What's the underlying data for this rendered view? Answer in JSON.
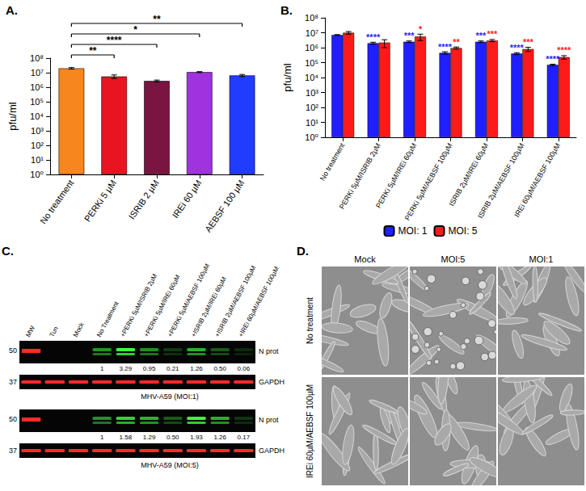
{
  "chart_data": [
    {
      "panel": "A.",
      "type": "bar",
      "log": "y",
      "grid": false,
      "categories": [
        "No treatment",
        "PERKi 5 µM",
        "ISRIB 2 µM",
        "IREi 60 µM",
        "AEBSF 100 µM"
      ],
      "values": [
        20000000,
        5500000,
        2700000,
        11000000,
        6500000
      ],
      "errors": [
        2500000,
        1500000,
        400000,
        800000,
        1000000
      ],
      "colors": [
        "#f7861e",
        "#e8141f",
        "#7a1440",
        "#a033e0",
        "#1f3cff"
      ],
      "y_label": "pfu/ml",
      "ylim": [
        1,
        100000000
      ],
      "yticks": [
        {
          "value": 1,
          "label": "10⁰"
        },
        {
          "value": 10,
          "label": "10¹"
        },
        {
          "value": 100,
          "label": "10²"
        },
        {
          "value": 1000,
          "label": "10³"
        },
        {
          "value": 10000,
          "label": "10⁴"
        },
        {
          "value": 100000,
          "label": "10⁵"
        },
        {
          "value": 1000000,
          "label": "10⁶"
        },
        {
          "value": 10000000,
          "label": "10⁷"
        },
        {
          "value": 100000000,
          "label": "10⁸"
        }
      ],
      "comparisons": [
        {
          "from": "No treatment",
          "to": "PERKi 5 µM",
          "label": "**"
        },
        {
          "from": "No treatment",
          "to": "ISRIB 2 µM",
          "label": "****"
        },
        {
          "from": "No treatment",
          "to": "IREi 60 µM",
          "label": "*"
        },
        {
          "from": "No treatment",
          "to": "AEBSF 100 µM",
          "label": "**"
        }
      ]
    },
    {
      "panel": "B.",
      "type": "bar",
      "log": "y",
      "grid": false,
      "legend": "bottom",
      "categories": [
        "No treatment",
        "PERKi 5µM/ISRIB 2µM",
        "PERKi 5µM/IREi 60µM",
        "PERKi 5µM/AEBSF 100µM",
        "ISRIB 2µM/IREi 60µM",
        "ISRIB 2µM/AEBSF 100µM",
        "IREi 60µM/AEBSF 100µM"
      ],
      "series": [
        {
          "name": "MOI: 1",
          "color": "#1f1fff",
          "values": [
            7000000,
            2000000,
            2500000,
            450000,
            2500000,
            400000,
            70000
          ],
          "errors": [
            500000,
            300000,
            300000,
            80000,
            300000,
            60000,
            8000
          ],
          "significance": [
            null,
            "****",
            "***",
            "****",
            "***",
            "****",
            "****"
          ]
        },
        {
          "name": "MOI: 5",
          "color": "#ff1a1a",
          "values": [
            10000000,
            2200000,
            5500000,
            950000,
            3000000,
            800000,
            230000
          ],
          "errors": [
            2000000,
            1200000,
            2500000,
            150000,
            500000,
            250000,
            60000
          ],
          "significance": [
            null,
            null,
            "*",
            "**",
            "***",
            "***",
            "****"
          ]
        }
      ],
      "y_label": "pfu/ml",
      "ylim": [
        1,
        100000000
      ],
      "yticks": [
        {
          "value": 1,
          "label": "10⁰"
        },
        {
          "value": 10,
          "label": "10¹"
        },
        {
          "value": 100,
          "label": "10²"
        },
        {
          "value": 1000,
          "label": "10³"
        },
        {
          "value": 10000,
          "label": "10⁴"
        },
        {
          "value": 100000,
          "label": "10⁵"
        },
        {
          "value": 1000000,
          "label": "10⁶"
        },
        {
          "value": 10000000,
          "label": "10⁷"
        },
        {
          "value": 100000000,
          "label": "10⁸"
        }
      ]
    }
  ],
  "blot": {
    "panel": "C.",
    "lanes": [
      "MW",
      "Tun",
      "Mock",
      "No Treatment",
      "+PERKi 5µM/ISRIB 2µM",
      "+PERKi 5µM/IREi 60µM",
      "+PERKi 5µM/AEBSF 100µM",
      "+ISRIB 2µM/IREi 60µM",
      "+ISRIB 2µM/AEBSF 100µM",
      "+IREi 60µM/AEBSF 100µM"
    ],
    "blots": [
      {
        "caption": "MHV-A59 (MOI:1)",
        "rows": [
          {
            "marker": 50,
            "label": "N prot",
            "values": [
              null,
              null,
              null,
              1,
              3.29,
              0.95,
              0.21,
              1.26,
              0.5,
              0.06
            ],
            "value_labels": [
              null,
              null,
              null,
              "1",
              "3.29",
              "0.95",
              "0.21",
              "1.26",
              "0.50",
              "0.06"
            ]
          },
          {
            "marker": 37,
            "label": "GAPDH"
          }
        ]
      },
      {
        "caption": "MHV-A59 (MOI:5)",
        "rows": [
          {
            "marker": 50,
            "label": "N prot",
            "values": [
              null,
              null,
              null,
              1,
              1.58,
              1.29,
              0.5,
              1.93,
              1.26,
              0.17
            ],
            "value_labels": [
              null,
              null,
              null,
              "1",
              "1.58",
              "1.29",
              "0.50",
              "1.93",
              "1.26",
              "0.17"
            ]
          },
          {
            "marker": 37,
            "label": "GAPDH"
          }
        ]
      }
    ]
  },
  "micrographs": {
    "panel": "D.",
    "columns": [
      "Mock",
      "MOI:5",
      "MOI:1"
    ],
    "rows": [
      "No treatment",
      "IREi 60µM/AEBSF 100µM"
    ]
  }
}
